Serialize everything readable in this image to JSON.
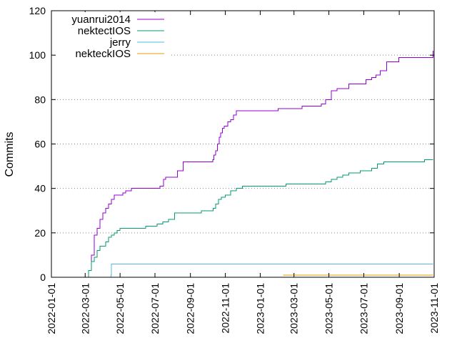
{
  "chart_data": {
    "type": "line",
    "title": "",
    "xlabel": "",
    "ylabel": "Commits",
    "ylim": [
      0,
      120
    ],
    "yticks": [
      0,
      20,
      40,
      60,
      80,
      100,
      120
    ],
    "xlim": [
      "2022-01-01",
      "2023-11-01"
    ],
    "xticks": [
      "2022-01-01",
      "2022-03-01",
      "2022-05-01",
      "2022-07-01",
      "2022-09-01",
      "2022-11-01",
      "2023-01-01",
      "2023-03-01",
      "2023-05-01",
      "2023-07-01",
      "2023-09-01",
      "2023-11-01"
    ],
    "grid": "y-dotted",
    "legend_position": "top-left",
    "series": [
      {
        "name": "yuanrui2014",
        "color": "#9400d3",
        "x": [
          "2022-02-28",
          "2022-03-07",
          "2022-03-12",
          "2022-03-17",
          "2022-03-22",
          "2022-03-27",
          "2022-04-01",
          "2022-04-06",
          "2022-04-11",
          "2022-04-16",
          "2022-04-21",
          "2022-04-26",
          "2022-05-01",
          "2022-05-06",
          "2022-05-11",
          "2022-05-21",
          "2022-05-31",
          "2022-06-10",
          "2022-06-20",
          "2022-06-30",
          "2022-07-10",
          "2022-07-16",
          "2022-07-20",
          "2022-07-30",
          "2022-08-09",
          "2022-08-19",
          "2022-08-31",
          "2022-09-15",
          "2022-09-30",
          "2022-10-10",
          "2022-10-12",
          "2022-10-15",
          "2022-10-18",
          "2022-10-21",
          "2022-10-24",
          "2022-10-27",
          "2022-10-30",
          "2022-11-05",
          "2022-11-10",
          "2022-11-15",
          "2022-11-20",
          "2022-11-27",
          "2022-12-01",
          "2022-12-15",
          "2023-01-01",
          "2023-01-15",
          "2023-02-01",
          "2023-02-15",
          "2023-03-01",
          "2023-03-15",
          "2023-04-01",
          "2023-04-10",
          "2023-04-18",
          "2023-04-25",
          "2023-05-05",
          "2023-05-15",
          "2023-05-25",
          "2023-06-05",
          "2023-06-15",
          "2023-06-25",
          "2023-07-05",
          "2023-07-15",
          "2023-07-22",
          "2023-07-30",
          "2023-08-10",
          "2023-08-31",
          "2023-09-15",
          "2023-09-30",
          "2023-10-15",
          "2023-10-26",
          "2023-10-30"
        ],
        "values": [
          0,
          3,
          10,
          19,
          22,
          26,
          29,
          31,
          33,
          35,
          37,
          37,
          37,
          38,
          39,
          40,
          40,
          40,
          40,
          40,
          41,
          44,
          45,
          45,
          48,
          52,
          52,
          52,
          52,
          53,
          55,
          57,
          60,
          63,
          65,
          67,
          68,
          70,
          71,
          73,
          75,
          75,
          75,
          75,
          75,
          75,
          76,
          76,
          76,
          77,
          77,
          77,
          78,
          80,
          84,
          85,
          85,
          87,
          87,
          87,
          89,
          90,
          91,
          93,
          97,
          99,
          99,
          99,
          99,
          99,
          102
        ]
      },
      {
        "name": "nektectIOS",
        "color": "#009e73",
        "x": [
          "2022-02-28",
          "2022-03-07",
          "2022-03-12",
          "2022-03-17",
          "2022-03-22",
          "2022-03-27",
          "2022-04-01",
          "2022-04-06",
          "2022-04-11",
          "2022-04-16",
          "2022-04-21",
          "2022-04-26",
          "2022-05-01",
          "2022-05-06",
          "2022-05-11",
          "2022-05-16",
          "2022-05-26",
          "2022-06-05",
          "2022-06-15",
          "2022-06-25",
          "2022-07-05",
          "2022-07-15",
          "2022-07-25",
          "2022-08-04",
          "2022-08-14",
          "2022-08-24",
          "2022-09-05",
          "2022-09-20",
          "2022-10-01",
          "2022-10-11",
          "2022-10-15",
          "2022-10-20",
          "2022-10-25",
          "2022-11-01",
          "2022-11-10",
          "2022-11-20",
          "2022-12-01",
          "2022-12-15",
          "2023-01-01",
          "2023-01-15",
          "2023-02-01",
          "2023-02-15",
          "2023-03-01",
          "2023-03-15",
          "2023-04-01",
          "2023-04-15",
          "2023-04-25",
          "2023-05-05",
          "2023-05-15",
          "2023-05-25",
          "2023-06-05",
          "2023-06-15",
          "2023-06-25",
          "2023-07-05",
          "2023-07-15",
          "2023-07-25",
          "2023-08-05",
          "2023-08-20",
          "2023-09-01",
          "2023-09-15",
          "2023-10-01",
          "2023-10-15",
          "2023-10-30"
        ],
        "values": [
          0,
          3,
          7,
          9,
          12,
          14,
          14,
          16,
          18,
          19,
          20,
          21,
          22,
          22,
          22,
          22,
          22,
          22,
          23,
          23,
          24,
          25,
          26,
          29,
          29,
          29,
          29,
          30,
          30,
          31,
          33,
          35,
          36,
          37,
          39,
          40,
          41,
          41,
          41,
          41,
          41,
          42,
          42,
          42,
          42,
          42,
          43,
          44,
          45,
          46,
          47,
          47,
          48,
          48,
          49,
          51,
          52,
          52,
          52,
          52,
          52,
          53,
          53
        ]
      },
      {
        "name": "jerry",
        "color": "#56b4e9",
        "x": [
          "2022-03-01",
          "2022-04-15",
          "2022-04-16",
          "2023-10-30"
        ],
        "values": [
          0,
          1,
          6,
          6
        ]
      },
      {
        "name": "nekteckIOS",
        "color": "#e69f00",
        "x": [
          "2023-02-10",
          "2023-10-30"
        ],
        "values": [
          1,
          1
        ]
      }
    ]
  }
}
